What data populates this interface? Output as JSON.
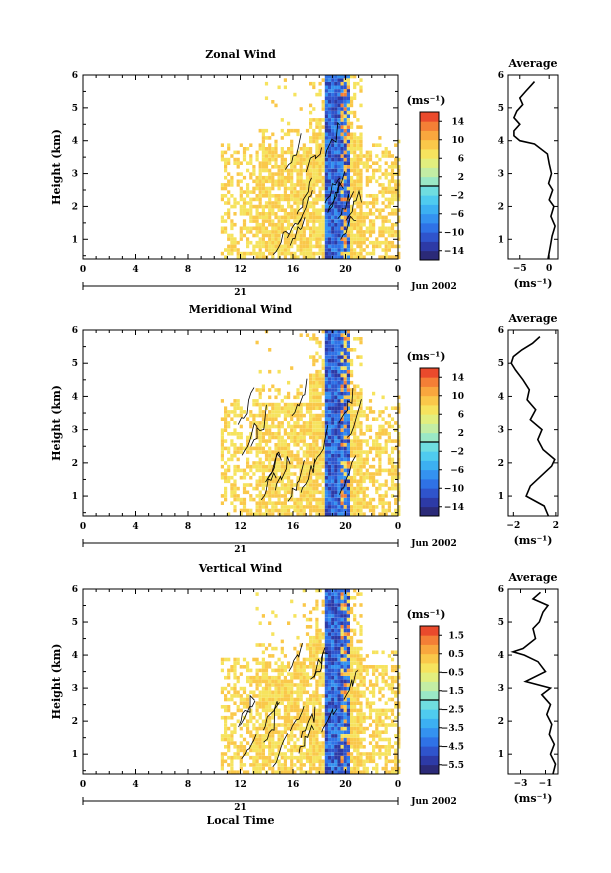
{
  "chart_data": [
    {
      "type": "heatmap",
      "title": "Zonal Wind",
      "ylabel": "Height (km)",
      "ylim": [
        0.4,
        6
      ],
      "yticks": [
        1,
        2,
        3,
        4,
        5,
        6
      ],
      "xlim": [
        0,
        24
      ],
      "xticks": [
        "0",
        "4",
        "8",
        "12",
        "16",
        "20",
        "0"
      ],
      "date_label": "21",
      "month_label": "Jun 2002",
      "colorbar": {
        "unit": "(ms⁻¹)",
        "ticks": [
          "14",
          "10",
          "6",
          "2",
          "−2",
          "−6",
          "−10",
          "−14"
        ],
        "range": [
          -16,
          16
        ],
        "levels": 16
      },
      "profile": {
        "title": "Average",
        "xlabel": "(ms⁻¹)",
        "xticks": [
          "−5",
          "0"
        ],
        "xlim": [
          -7,
          1.5
        ],
        "y": [
          0.4,
          0.8,
          1.1,
          1.4,
          1.7,
          2.0,
          2.2,
          2.5,
          2.7,
          3.0,
          3.3,
          3.6,
          3.9,
          4.0,
          4.15,
          4.3,
          4.5,
          4.7,
          4.9,
          5.1,
          5.3,
          5.5,
          5.7,
          5.8
        ],
        "x": [
          -0.2,
          0.2,
          0.5,
          1.0,
          0.3,
          0.8,
          0.0,
          0.6,
          -0.1,
          0.4,
          0.0,
          -0.3,
          -2.5,
          -5.0,
          -6.0,
          -6.0,
          -5.0,
          -6.0,
          -5.5,
          -4.5,
          -5.0,
          -4.0,
          -3.0,
          -2.5
        ]
      }
    },
    {
      "type": "heatmap",
      "title": "Meridional Wind",
      "ylabel": "Height (km)",
      "ylim": [
        0.4,
        6
      ],
      "yticks": [
        1,
        2,
        3,
        4,
        5,
        6
      ],
      "xlim": [
        0,
        24
      ],
      "xticks": [
        "0",
        "4",
        "8",
        "12",
        "16",
        "20",
        "0"
      ],
      "date_label": "21",
      "month_label": "Jun 2002",
      "colorbar": {
        "unit": "(ms⁻¹)",
        "ticks": [
          "14",
          "10",
          "6",
          "2",
          "−2",
          "−6",
          "−10",
          "−14"
        ],
        "range": [
          -16,
          16
        ],
        "levels": 16
      },
      "profile": {
        "title": "Average",
        "xlabel": "(ms⁻¹)",
        "xticks": [
          "−2",
          "2"
        ],
        "xlim": [
          -2.5,
          2.2
        ],
        "y": [
          0.4,
          0.7,
          1.0,
          1.3,
          1.6,
          1.9,
          2.1,
          2.4,
          2.7,
          3.0,
          3.3,
          3.6,
          3.9,
          4.2,
          4.5,
          4.8,
          5.0,
          5.2,
          5.4,
          5.6,
          5.8
        ],
        "x": [
          1.3,
          0.9,
          -0.8,
          -0.4,
          0.6,
          1.6,
          1.9,
          0.8,
          0.3,
          0.7,
          -0.4,
          0.1,
          -0.7,
          -0.5,
          -1.1,
          -1.8,
          -2.2,
          -2.0,
          -1.2,
          -0.2,
          0.5
        ]
      }
    },
    {
      "type": "heatmap",
      "title": "Vertical Wind",
      "ylabel": "Height (km)",
      "xlabel": "Local Time",
      "ylim": [
        0.4,
        6
      ],
      "yticks": [
        1,
        2,
        3,
        4,
        5,
        6
      ],
      "xlim": [
        0,
        24
      ],
      "xticks": [
        "0",
        "4",
        "8",
        "12",
        "16",
        "20",
        "0"
      ],
      "date_label": "21",
      "month_label": "Jun 2002",
      "colorbar": {
        "unit": "(ms⁻¹)",
        "ticks": [
          "1.5",
          "0.5",
          "−0.5",
          "−1.5",
          "−2.5",
          "−3.5",
          "−4.5",
          "−5.5"
        ],
        "range": [
          -6,
          2
        ],
        "levels": 16
      },
      "profile": {
        "title": "Average",
        "xlabel": "(ms⁻¹)",
        "xticks": [
          "−3",
          "−1"
        ],
        "xlim": [
          -4,
          0
        ],
        "y": [
          0.4,
          0.7,
          1.0,
          1.3,
          1.6,
          1.9,
          2.2,
          2.5,
          2.8,
          3.0,
          3.2,
          3.5,
          3.8,
          4.0,
          4.1,
          4.2,
          4.5,
          4.8,
          5.0,
          5.3,
          5.5,
          5.7,
          5.9
        ],
        "x": [
          -0.4,
          -0.2,
          -0.6,
          -0.3,
          -0.7,
          -0.5,
          -0.9,
          -0.6,
          -1.3,
          -0.6,
          -2.6,
          -1.0,
          -1.6,
          -2.7,
          -3.6,
          -2.8,
          -1.8,
          -2.0,
          -1.5,
          -1.2,
          -0.8,
          -2.0,
          -1.4
        ]
      }
    }
  ]
}
